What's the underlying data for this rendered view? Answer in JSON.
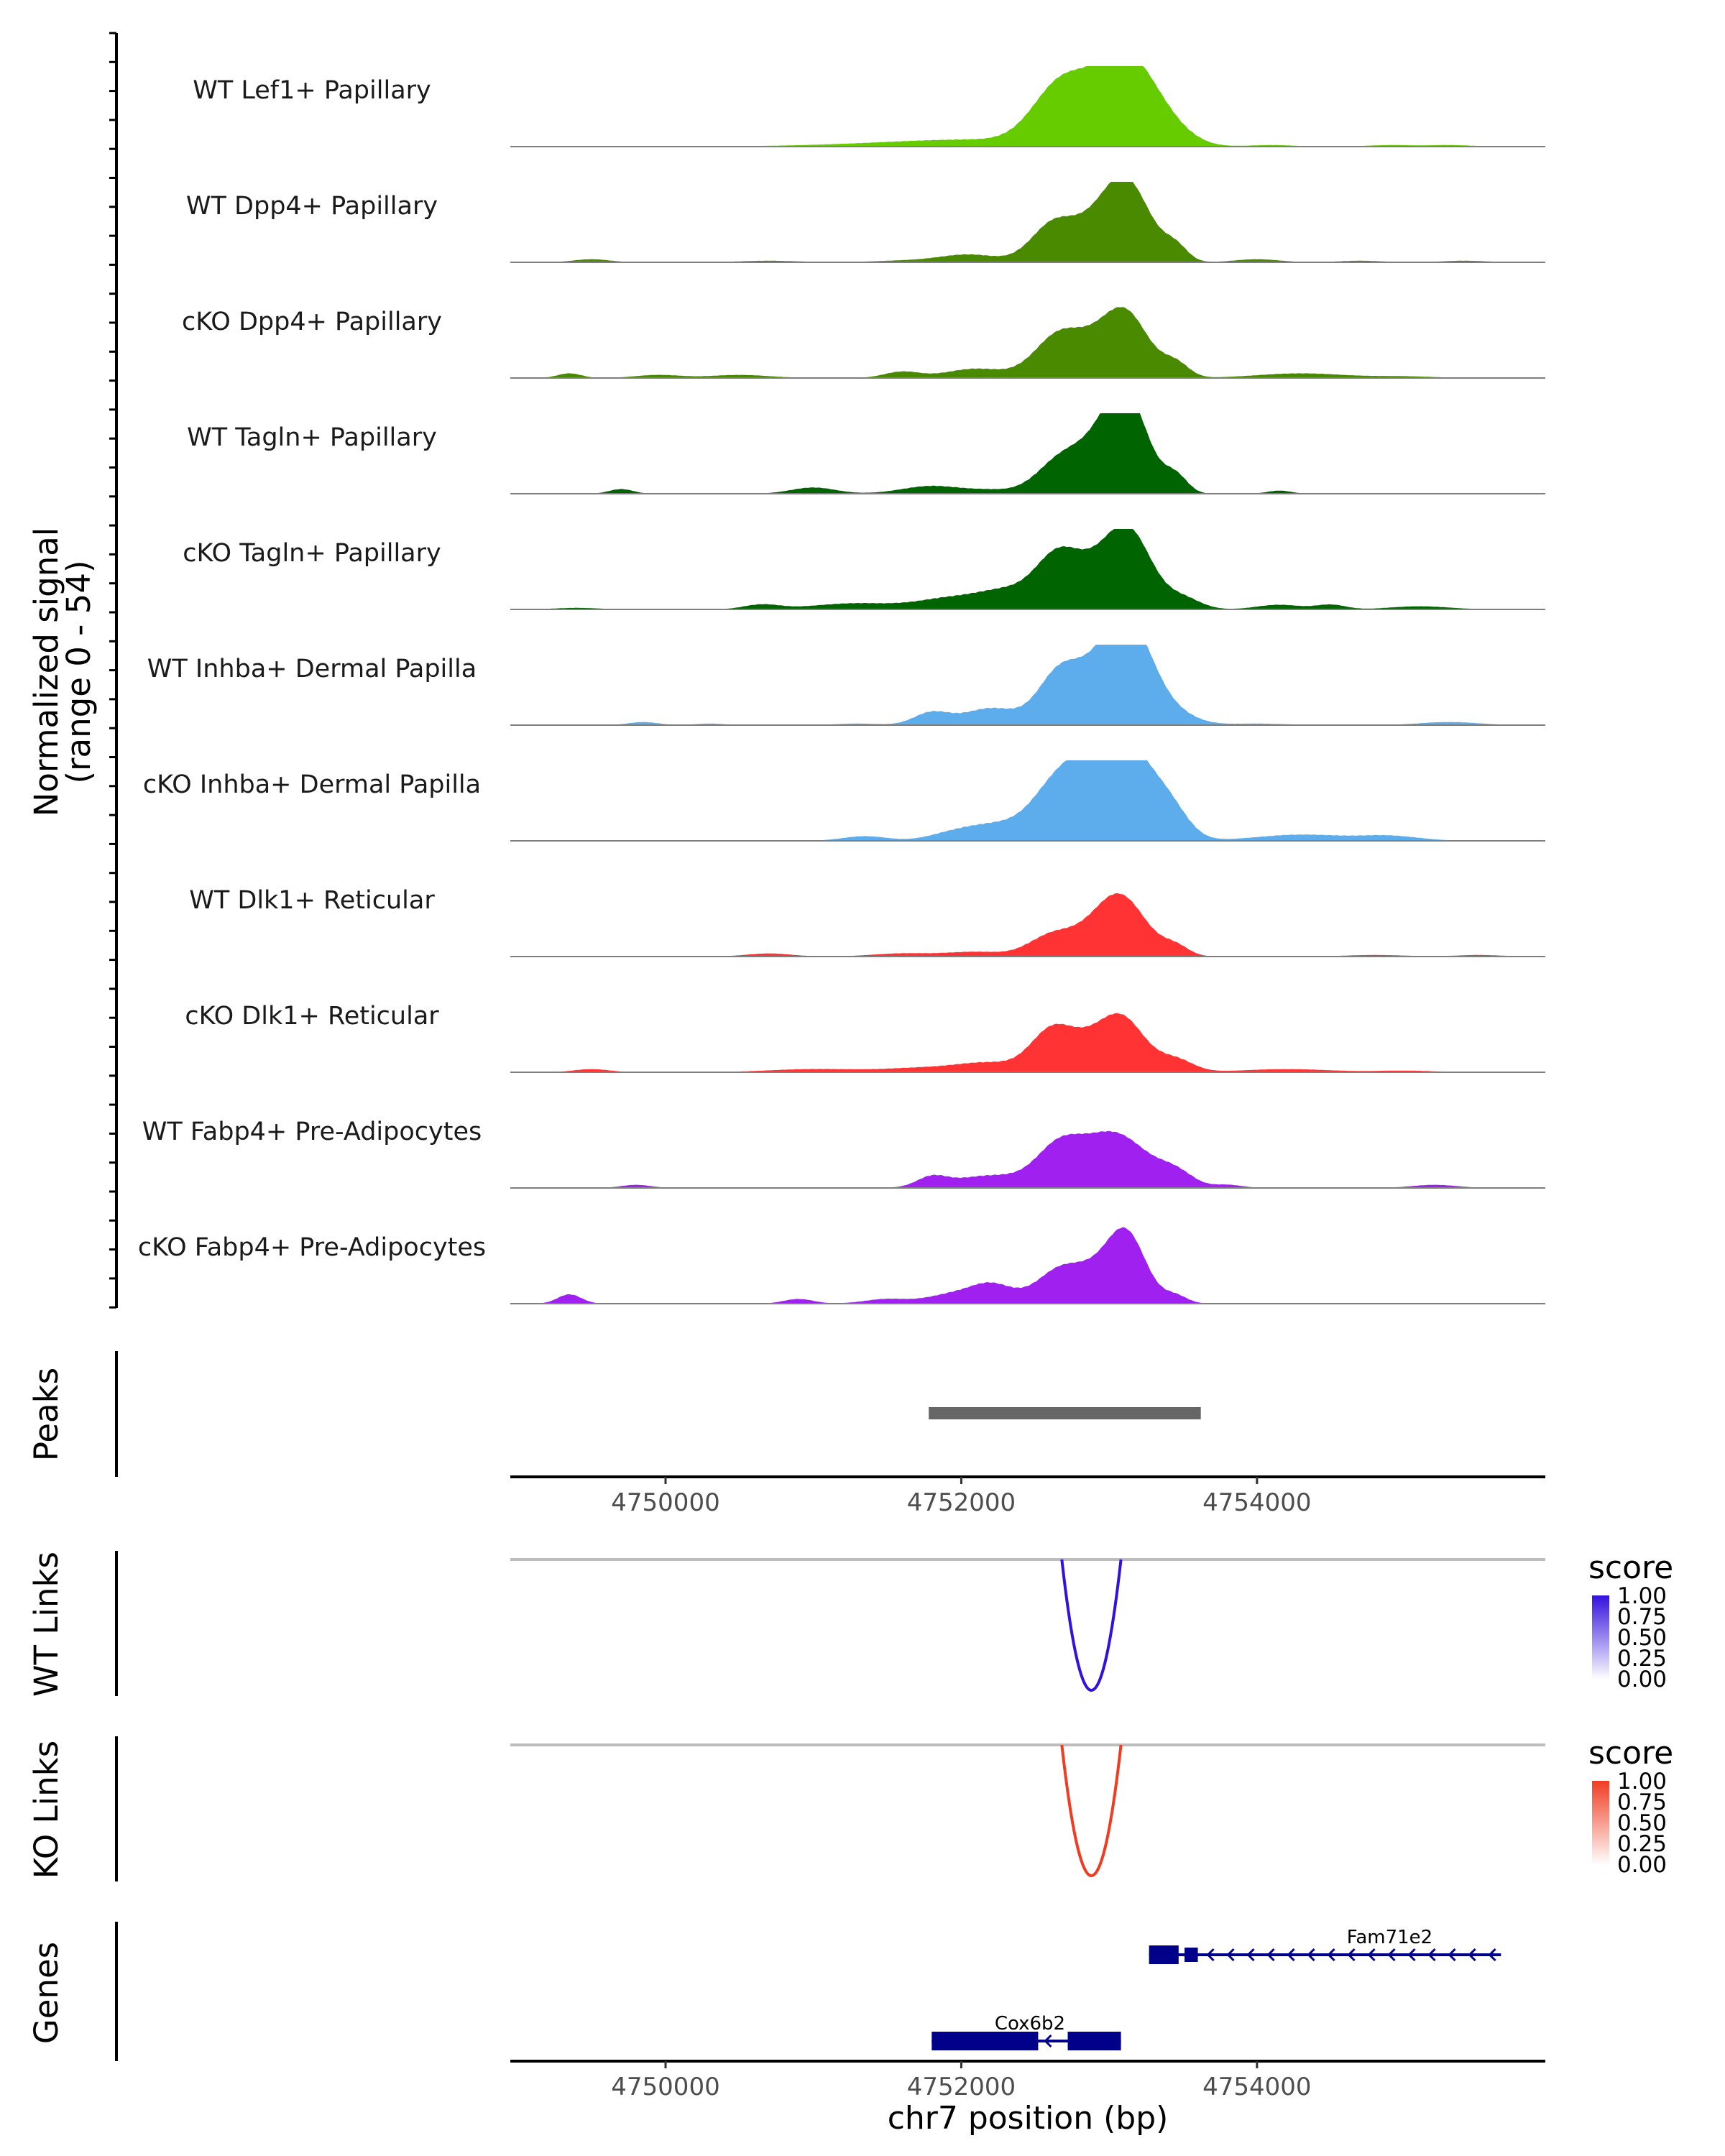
{
  "chart_data": {
    "type": "area",
    "chromosome": "chr7",
    "xlim": [
      4748950,
      4755950
    ],
    "xlabel": "chr7 position (bp)",
    "xticks": [
      {
        "value": 4750000,
        "label": "4750000"
      },
      {
        "value": 4752000,
        "label": "4752000"
      },
      {
        "value": 4754000,
        "label": "4754000"
      }
    ],
    "signal_axis": {
      "title_line1": "Normalized signal",
      "title_line2": "(range 0 - 54)",
      "ylim": [
        0,
        54
      ]
    },
    "tracks": [
      {
        "name": "WT Lef1+ Papillary",
        "color": "#66CC00",
        "peaks": [
          [
            4751700,
            2,
            600
          ],
          [
            4752200,
            3,
            500
          ],
          [
            4752650,
            31,
            180
          ],
          [
            4752850,
            16,
            200
          ],
          [
            4753120,
            53,
            190
          ],
          [
            4753380,
            9,
            160
          ],
          [
            4753550,
            1,
            150
          ],
          [
            4754100,
            1,
            150
          ],
          [
            4754900,
            1,
            150
          ],
          [
            4755300,
            1,
            150
          ]
        ]
      },
      {
        "name": "WT Dpp4+ Papillary",
        "color": "#4A8A00",
        "peaks": [
          [
            4749500,
            2,
            120
          ],
          [
            4750700,
            1,
            200
          ],
          [
            4751600,
            1,
            200
          ],
          [
            4752050,
            5,
            200
          ],
          [
            4752600,
            18,
            140
          ],
          [
            4752850,
            20,
            200
          ],
          [
            4753120,
            49,
            160
          ],
          [
            4753450,
            9,
            80
          ],
          [
            4754000,
            2,
            150
          ],
          [
            4754700,
            1,
            150
          ],
          [
            4755400,
            1,
            150
          ]
        ]
      },
      {
        "name": "cKO Dpp4+ Papillary",
        "color": "#4A8A00",
        "peaks": [
          [
            4749350,
            3,
            80
          ],
          [
            4749950,
            2,
            150
          ],
          [
            4750500,
            2,
            200
          ],
          [
            4751600,
            4,
            120
          ],
          [
            4752100,
            6,
            200
          ],
          [
            4752650,
            26,
            160
          ],
          [
            4752950,
            20,
            180
          ],
          [
            4753130,
            33,
            150
          ],
          [
            4753450,
            9,
            90
          ],
          [
            4754300,
            3,
            300
          ],
          [
            4755000,
            1,
            200
          ]
        ]
      },
      {
        "name": "WT Tagln+ Papillary",
        "color": "#006400",
        "peaks": [
          [
            4749700,
            3,
            80
          ],
          [
            4751000,
            4,
            150
          ],
          [
            4751800,
            5,
            200
          ],
          [
            4752200,
            2,
            150
          ],
          [
            4752700,
            25,
            170
          ],
          [
            4753000,
            30,
            150
          ],
          [
            4753140,
            47,
            140
          ],
          [
            4753450,
            11,
            80
          ],
          [
            4754150,
            2,
            80
          ]
        ]
      },
      {
        "name": "cKO Tagln+ Papillary",
        "color": "#006400",
        "peaks": [
          [
            4749400,
            1,
            150
          ],
          [
            4750650,
            3,
            120
          ],
          [
            4751300,
            4,
            300
          ],
          [
            4751900,
            6,
            200
          ],
          [
            4752300,
            12,
            200
          ],
          [
            4752650,
            32,
            150
          ],
          [
            4752950,
            25,
            180
          ],
          [
            4753150,
            41,
            150
          ],
          [
            4753500,
            7,
            120
          ],
          [
            4754150,
            3,
            150
          ],
          [
            4754500,
            3,
            100
          ],
          [
            4755100,
            2,
            200
          ]
        ]
      },
      {
        "name": "WT Inhba+ Dermal Papilla",
        "color": "#5DADEC",
        "peaks": [
          [
            4749850,
            2,
            100
          ],
          [
            4750300,
            1,
            100
          ],
          [
            4751300,
            1,
            150
          ],
          [
            4751800,
            8,
            120
          ],
          [
            4752200,
            11,
            180
          ],
          [
            4752650,
            28,
            140
          ],
          [
            4752950,
            33,
            200
          ],
          [
            4753150,
            50,
            160
          ],
          [
            4753450,
            6,
            150
          ],
          [
            4754000,
            1,
            200
          ],
          [
            4755300,
            2,
            200
          ]
        ]
      },
      {
        "name": "cKO Inhba+ Dermal Papilla",
        "color": "#5DADEC",
        "peaks": [
          [
            4751350,
            3,
            150
          ],
          [
            4751900,
            3,
            150
          ],
          [
            4752200,
            10,
            200
          ],
          [
            4752650,
            30,
            180
          ],
          [
            4752900,
            27,
            220
          ],
          [
            4753120,
            52,
            200
          ],
          [
            4753420,
            13,
            120
          ],
          [
            4754300,
            4,
            300
          ],
          [
            4754900,
            3,
            200
          ]
        ]
      },
      {
        "name": "WT Dlk1+ Reticular",
        "color": "#FF3333",
        "peaks": [
          [
            4750700,
            2,
            150
          ],
          [
            4751600,
            2,
            200
          ],
          [
            4752100,
            3,
            200
          ],
          [
            4752600,
            11,
            150
          ],
          [
            4752850,
            9,
            200
          ],
          [
            4753080,
            37,
            170
          ],
          [
            4753450,
            6,
            90
          ],
          [
            4754800,
            1,
            200
          ],
          [
            4755500,
            1,
            150
          ]
        ]
      },
      {
        "name": "cKO Dlk1+ Reticular",
        "color": "#FF3333",
        "peaks": [
          [
            4749500,
            2,
            120
          ],
          [
            4751000,
            2,
            300
          ],
          [
            4751800,
            3,
            300
          ],
          [
            4752200,
            5,
            200
          ],
          [
            4752600,
            23,
            140
          ],
          [
            4752850,
            18,
            180
          ],
          [
            4753100,
            31,
            150
          ],
          [
            4753450,
            8,
            120
          ],
          [
            4754200,
            2,
            300
          ],
          [
            4755000,
            1,
            200
          ]
        ]
      },
      {
        "name": "WT Fabp4+ Pre-Adipocytes",
        "color": "#A020F0",
        "peaks": [
          [
            4749800,
            2,
            100
          ],
          [
            4751800,
            6,
            100
          ],
          [
            4752200,
            8,
            250
          ],
          [
            4752650,
            22,
            150
          ],
          [
            4752900,
            16,
            200
          ],
          [
            4753100,
            25,
            200
          ],
          [
            4753450,
            9,
            120
          ],
          [
            4753800,
            2,
            100
          ],
          [
            4755200,
            2,
            150
          ]
        ]
      },
      {
        "name": "cKO Fabp4+ Pre-Adipocytes",
        "color": "#A020F0",
        "peaks": [
          [
            4749350,
            6,
            80
          ],
          [
            4750900,
            3,
            100
          ],
          [
            4751500,
            3,
            150
          ],
          [
            4751900,
            5,
            150
          ],
          [
            4752200,
            13,
            150
          ],
          [
            4752650,
            20,
            150
          ],
          [
            4752900,
            17,
            150
          ],
          [
            4753120,
            44,
            130
          ],
          [
            4753450,
            5,
            80
          ]
        ]
      }
    ],
    "peaks_track": {
      "label": "Peaks",
      "color": "#666666",
      "regions": [
        {
          "start": 4751780,
          "end": 4753620
        }
      ]
    },
    "links_tracks": [
      {
        "label": "WT Links",
        "color": "#3311DD",
        "links": [
          {
            "start": 4752680,
            "end": 4753080,
            "score": 1.0
          }
        ],
        "legend": {
          "title": "score",
          "ticks": [
            "1.00",
            "0.75",
            "0.50",
            "0.25",
            "0.00"
          ],
          "low": "#FFFFFF",
          "high": "#3311DD"
        }
      },
      {
        "label": "KO Links",
        "color": "#F03C22",
        "links": [
          {
            "start": 4752680,
            "end": 4753080,
            "score": 1.0
          }
        ],
        "legend": {
          "title": "score",
          "ticks": [
            "1.00",
            "0.75",
            "0.50",
            "0.25",
            "0.00"
          ],
          "low": "#FFFFFF",
          "high": "#F03C22"
        }
      }
    ],
    "genes_track": {
      "label": "Genes",
      "color": "#00008B",
      "genes": [
        {
          "name": "Fam71e2",
          "start": 4753270,
          "end": 4755650,
          "strand": "-",
          "exons": [
            [
              4753270,
              4753470
            ],
            [
              4753510,
              4753600
            ]
          ]
        },
        {
          "name": "Cox6b2",
          "start": 4751800,
          "end": 4753080,
          "strand": "-",
          "exons": [
            [
              4751800,
              4752520
            ],
            [
              4752720,
              4753080
            ]
          ]
        }
      ]
    }
  }
}
